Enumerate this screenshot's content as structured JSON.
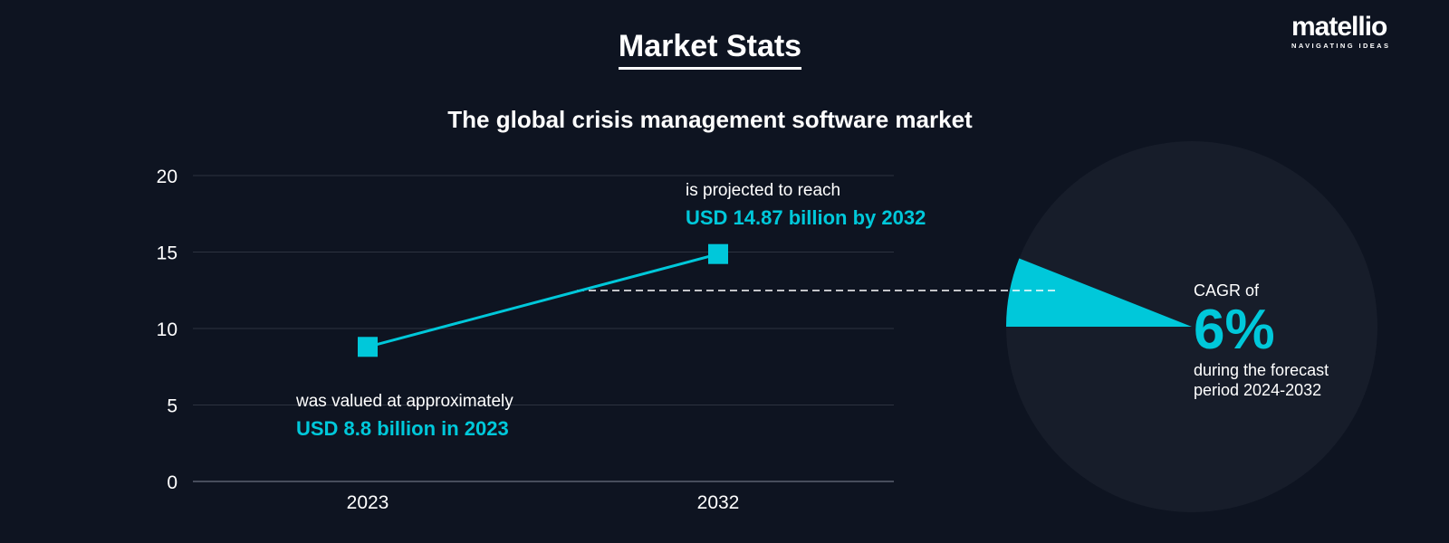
{
  "header": {
    "title": "Market Stats",
    "logo_name": "matellio",
    "logo_tagline": "NAVIGATING IDEAS"
  },
  "chart_data": {
    "type": "line",
    "title": "The global crisis management software market",
    "categories": [
      "2023",
      "2032"
    ],
    "values": [
      8.8,
      14.87
    ],
    "ylim": [
      0,
      20
    ],
    "yticks": [
      "0",
      "5",
      "10",
      "15",
      "20"
    ],
    "grid": true,
    "color": "#00c8da",
    "annotations": {
      "start": {
        "text": "was valued at approximately",
        "highlight": "USD 8.8 billion in 2023"
      },
      "end": {
        "text": "is projected to reach",
        "highlight": "USD 14.87 billion by 2032"
      }
    }
  },
  "cagr": {
    "label": "CAGR of",
    "value": "6%",
    "percent": 6,
    "desc_line1": "during the forecast",
    "desc_line2": "period 2024-2032"
  }
}
